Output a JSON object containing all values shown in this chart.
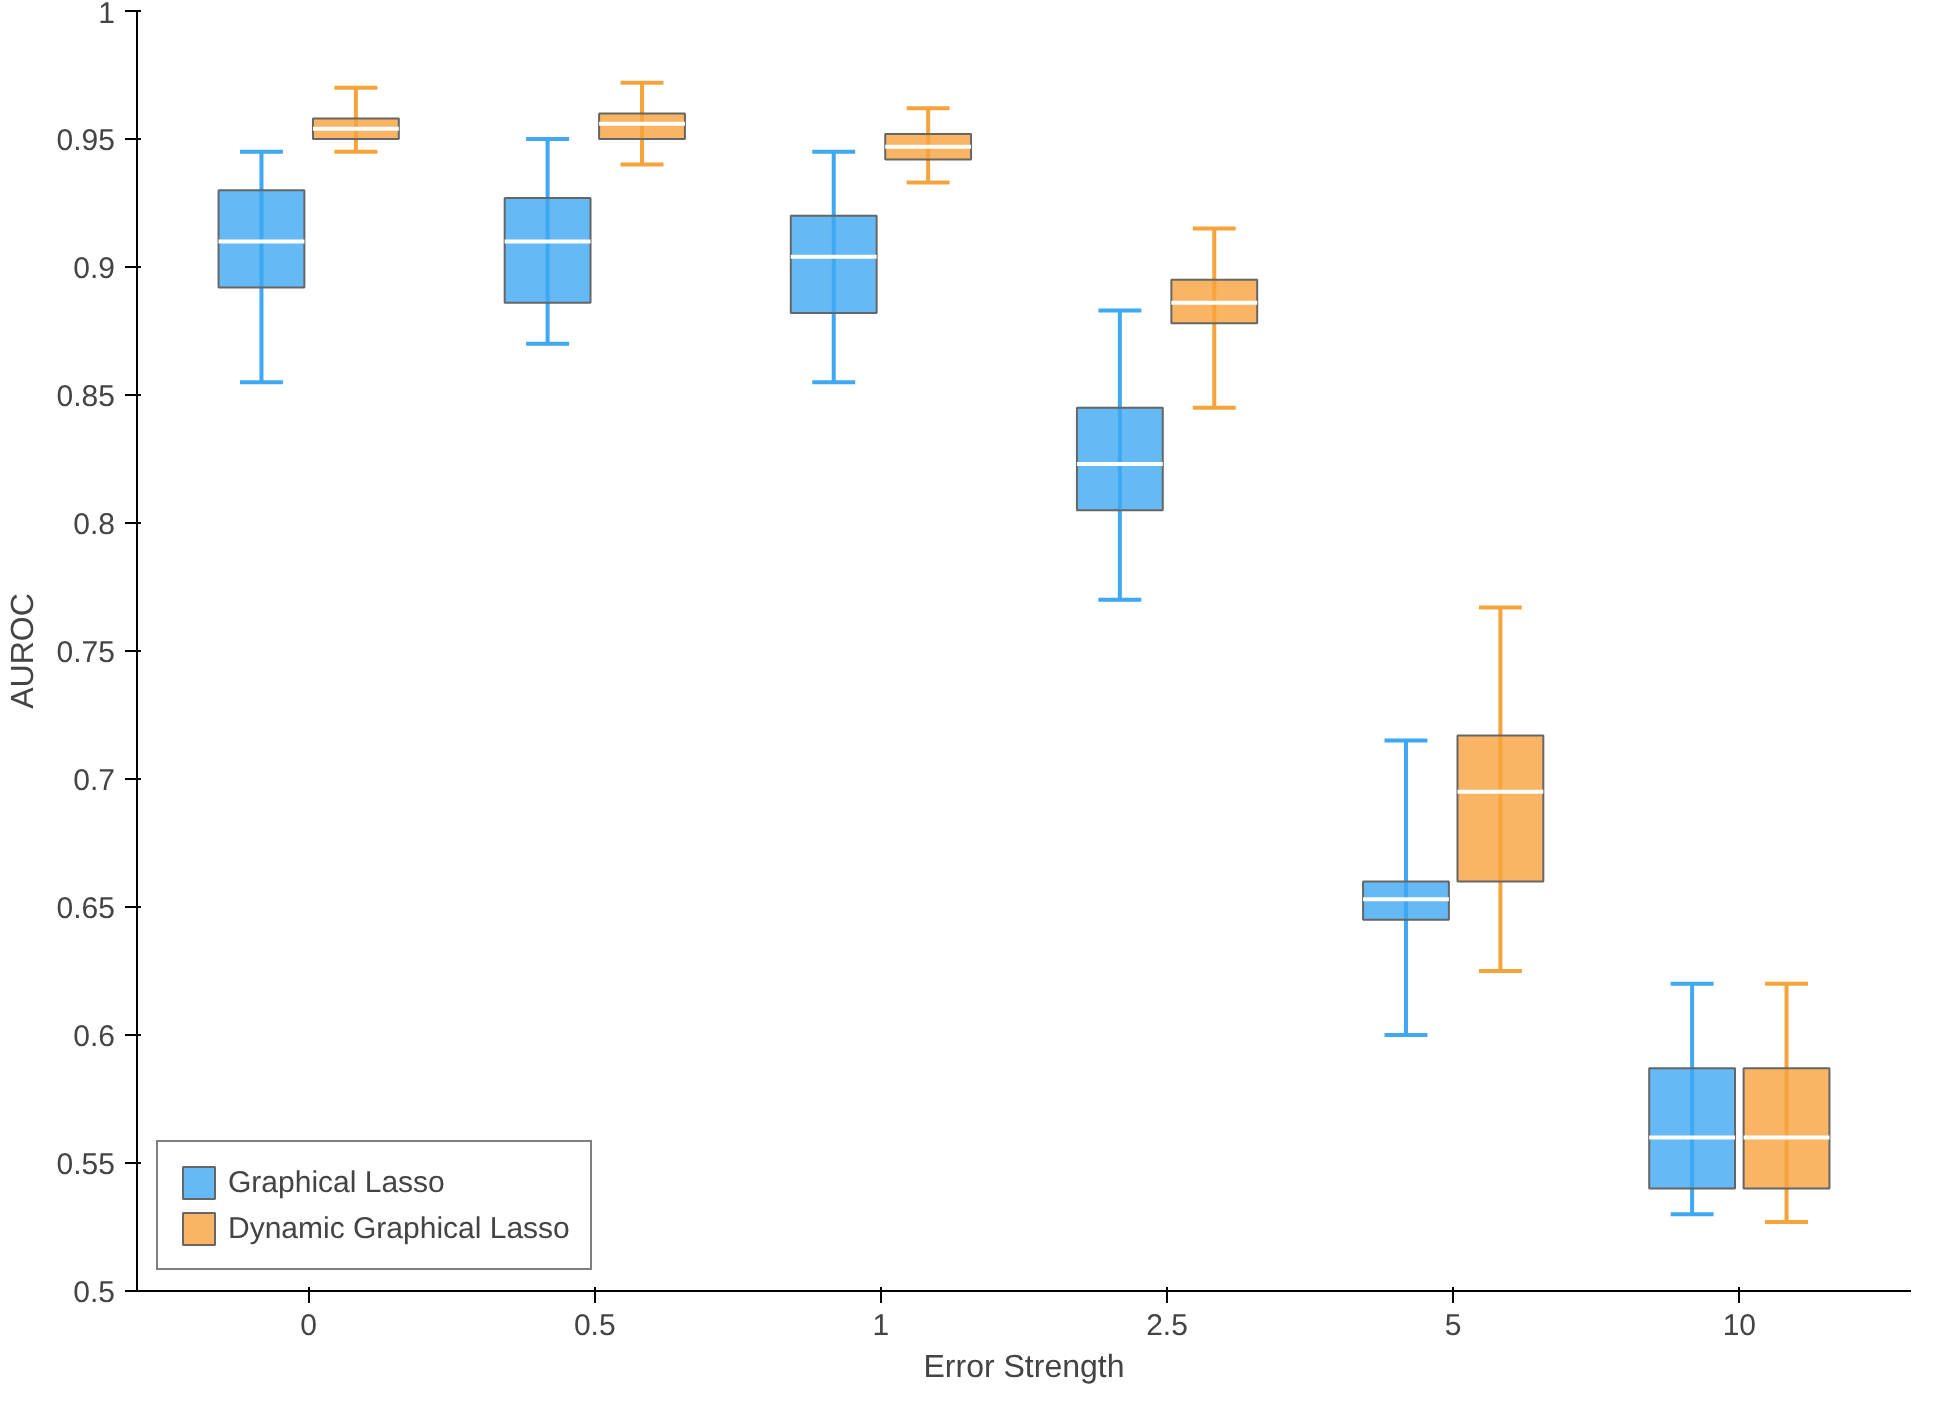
{
  "chart_data": {
    "type": "box",
    "xlabel": "Error Strength",
    "ylabel": "AUROC",
    "categories": [
      "0",
      "0.5",
      "1",
      "2.5",
      "5",
      "10"
    ],
    "ylim": [
      0.5,
      1
    ],
    "yticks": [
      0.5,
      0.55,
      0.6,
      0.65,
      0.7,
      0.75,
      0.8,
      0.85,
      0.9,
      0.95,
      1
    ],
    "grid": false,
    "legend": "bottom left",
    "series": [
      {
        "name": "Graphical Lasso",
        "color": "#3ea8f2",
        "boxes": [
          {
            "low": 0.855,
            "q1": 0.892,
            "median": 0.91,
            "q3": 0.93,
            "high": 0.945
          },
          {
            "low": 0.87,
            "q1": 0.886,
            "median": 0.91,
            "q3": 0.927,
            "high": 0.95
          },
          {
            "low": 0.855,
            "q1": 0.882,
            "median": 0.904,
            "q3": 0.92,
            "high": 0.945
          },
          {
            "low": 0.77,
            "q1": 0.805,
            "median": 0.823,
            "q3": 0.845,
            "high": 0.883
          },
          {
            "low": 0.6,
            "q1": 0.645,
            "median": 0.653,
            "q3": 0.66,
            "high": 0.715
          },
          {
            "low": 0.53,
            "q1": 0.54,
            "median": 0.56,
            "q3": 0.587,
            "high": 0.62
          }
        ]
      },
      {
        "name": "Dynamic Graphical Lasso",
        "color": "#f7a33c",
        "boxes": [
          {
            "low": 0.945,
            "q1": 0.95,
            "median": 0.954,
            "q3": 0.958,
            "high": 0.97
          },
          {
            "low": 0.94,
            "q1": 0.95,
            "median": 0.956,
            "q3": 0.96,
            "high": 0.972
          },
          {
            "low": 0.933,
            "q1": 0.942,
            "median": 0.947,
            "q3": 0.952,
            "high": 0.962
          },
          {
            "low": 0.845,
            "q1": 0.878,
            "median": 0.886,
            "q3": 0.895,
            "high": 0.915
          },
          {
            "low": 0.625,
            "q1": 0.66,
            "median": 0.695,
            "q3": 0.717,
            "high": 0.767
          },
          {
            "low": 0.527,
            "q1": 0.54,
            "median": 0.56,
            "q3": 0.587,
            "high": 0.62
          }
        ]
      }
    ]
  }
}
